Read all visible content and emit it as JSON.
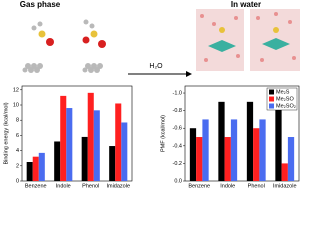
{
  "arrow_label": "H₂O",
  "chart_data": [
    {
      "type": "bar",
      "title": "Gas phase",
      "y_label": "Binding energy (kcal/mol)",
      "categories": [
        "Benzene",
        "Indole",
        "Phenol",
        "Imidazole"
      ],
      "series": [
        {
          "color": "#000000",
          "values": [
            2.5,
            5.2,
            5.8,
            4.6
          ]
        },
        {
          "color": "#ff2020",
          "values": [
            3.2,
            11.2,
            11.6,
            10.2
          ]
        },
        {
          "color": "#4a6cf0",
          "values": [
            3.7,
            9.6,
            9.3,
            7.7
          ]
        }
      ],
      "ylim": [
        0,
        12.5
      ],
      "yticks": [
        0,
        2,
        4,
        6,
        8,
        10,
        12
      ]
    },
    {
      "type": "bar",
      "title": "In water",
      "y_label": "PMF (kcal/mol)",
      "categories": [
        "Benzene",
        "Indole",
        "Phenol",
        "Imidazole"
      ],
      "series": [
        {
          "name": "Me₂S",
          "color": "#000000",
          "values": [
            -0.6,
            -0.9,
            -0.9,
            -1.0
          ]
        },
        {
          "name": "Me₂SO",
          "color": "#ff2020",
          "values": [
            -0.5,
            -0.5,
            -0.6,
            -0.2
          ]
        },
        {
          "name": "Me₂SO₂",
          "color": "#4a6cf0",
          "values": [
            -0.7,
            -0.7,
            -0.7,
            -0.5
          ]
        }
      ],
      "ylim": [
        0,
        -1.08
      ],
      "yticks": [
        {
          "value": 0,
          "label": "0.0"
        },
        -0.2,
        -0.4,
        -0.6,
        -0.8,
        {
          "value": -1,
          "label": "-1.0"
        }
      ],
      "legend": "top-right"
    }
  ]
}
